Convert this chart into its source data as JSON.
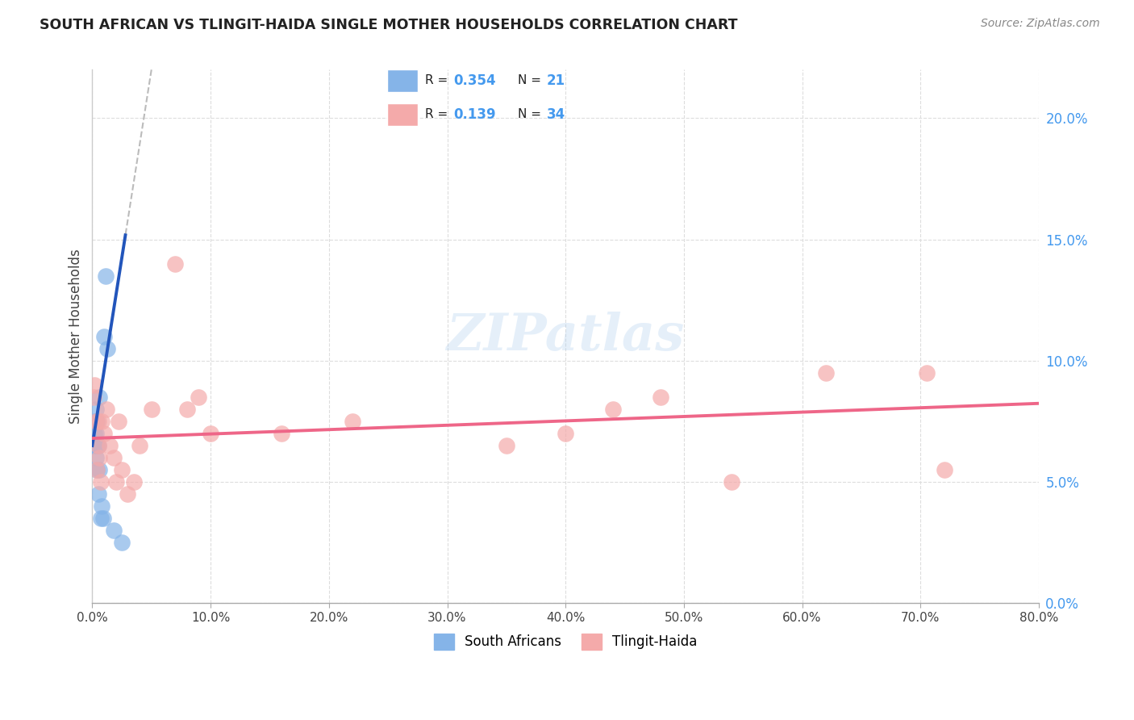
{
  "title": "SOUTH AFRICAN VS TLINGIT-HAIDA SINGLE MOTHER HOUSEHOLDS CORRELATION CHART",
  "source": "Source: ZipAtlas.com",
  "ylabel": "Single Mother Households",
  "x_ticks": [
    0.0,
    10.0,
    20.0,
    30.0,
    40.0,
    50.0,
    60.0,
    70.0,
    80.0
  ],
  "y_ticks": [
    0.0,
    5.0,
    10.0,
    15.0,
    20.0
  ],
  "xlim": [
    0.0,
    80.0
  ],
  "ylim": [
    0.0,
    22.0
  ],
  "blue_scatter_color": "#85B4E8",
  "pink_scatter_color": "#F4AAAA",
  "blue_line_color": "#2255BB",
  "pink_line_color": "#EE6688",
  "dash_line_color": "#BBBBBB",
  "right_axis_color": "#4499EE",
  "label_sa": "South Africans",
  "label_th": "Tlingit-Haida",
  "bg_color": "#FFFFFF",
  "grid_color": "#DDDDDD",
  "blue_points_x": [
    0.1,
    0.2,
    0.2,
    0.3,
    0.3,
    0.3,
    0.4,
    0.4,
    0.4,
    0.5,
    0.5,
    0.6,
    0.6,
    0.7,
    0.8,
    0.9,
    1.0,
    1.1,
    1.3,
    1.8,
    2.5
  ],
  "blue_points_y": [
    6.5,
    7.0,
    7.5,
    6.0,
    7.0,
    8.0,
    5.5,
    6.5,
    7.5,
    4.5,
    6.5,
    5.5,
    8.5,
    3.5,
    4.0,
    3.5,
    11.0,
    13.5,
    10.5,
    3.0,
    2.5
  ],
  "pink_points_x": [
    0.1,
    0.2,
    0.3,
    0.4,
    0.5,
    0.5,
    0.6,
    0.7,
    0.8,
    1.0,
    1.2,
    1.5,
    1.8,
    2.0,
    2.2,
    2.5,
    3.0,
    3.5,
    4.0,
    5.0,
    7.0,
    8.0,
    9.0,
    10.0,
    16.0,
    22.0,
    35.0,
    40.0,
    44.0,
    48.0,
    54.0,
    62.0,
    70.5,
    72.0
  ],
  "pink_points_y": [
    8.5,
    9.0,
    7.5,
    5.5,
    6.5,
    7.5,
    6.0,
    5.0,
    7.5,
    7.0,
    8.0,
    6.5,
    6.0,
    5.0,
    7.5,
    5.5,
    4.5,
    5.0,
    6.5,
    8.0,
    14.0,
    8.0,
    8.5,
    7.0,
    7.0,
    7.5,
    6.5,
    7.0,
    8.0,
    8.5,
    5.0,
    9.5,
    9.5,
    5.5
  ],
  "blue_solid_xmax": 2.8,
  "blue_intercept_override": 6.5,
  "blue_slope_override": 3.1,
  "pink_intercept_override": 6.8,
  "pink_slope_override": 0.018
}
